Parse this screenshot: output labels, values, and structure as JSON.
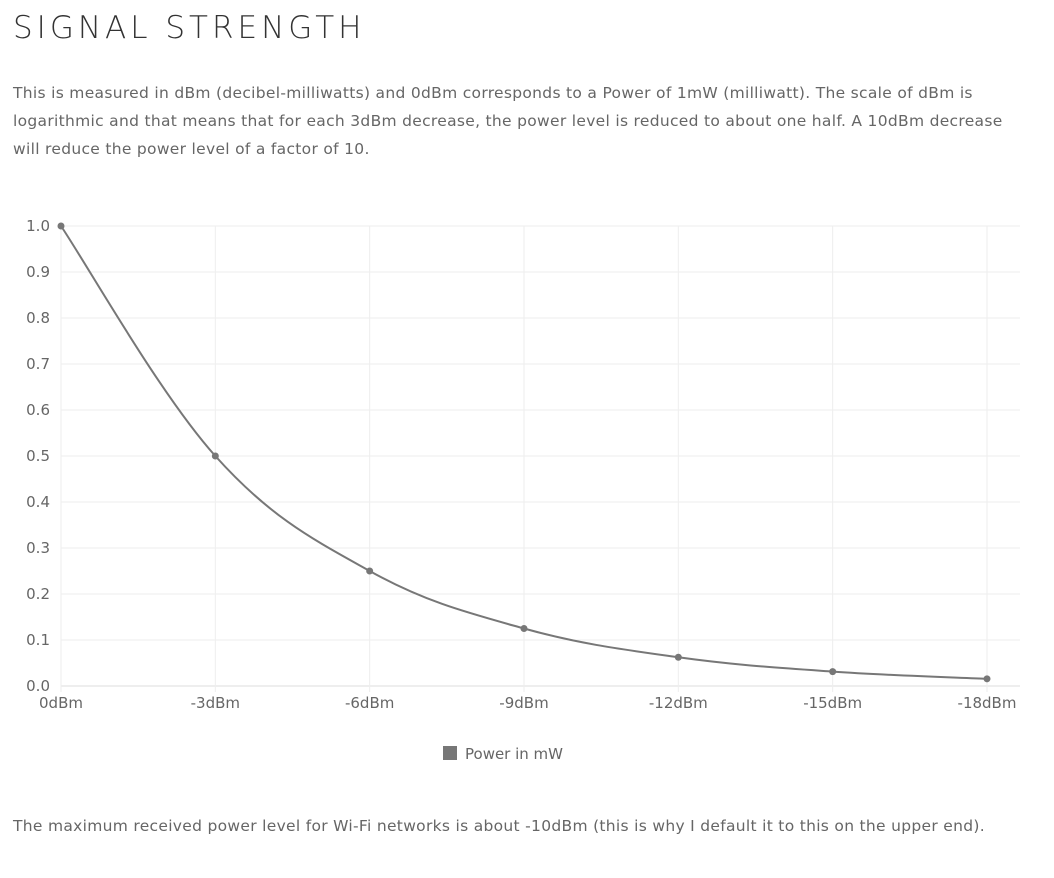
{
  "page": {
    "title": "SIGNAL STRENGTH",
    "intro": "This is measured in dBm (decibel-milliwatts) and 0dBm corresponds to a Power of 1mW (milliwatt). The scale of dBm is logarithmic and that means that for each 3dBm decrease, the power level is reduced to about one half. A 10dBm decrease will reduce the power level of a factor of 10.",
    "outro": "The maximum received power level for Wi-Fi networks is about -10dBm (this is why I default it to this on the upper end)."
  },
  "colors": {
    "series": "#777777",
    "grid": "#eeeeee",
    "text": "#666666"
  },
  "chart_data": {
    "type": "line",
    "categories": [
      "0dBm",
      "-3dBm",
      "-6dBm",
      "-9dBm",
      "-12dBm",
      "-15dBm",
      "-18dBm"
    ],
    "series": [
      {
        "name": "Power in mW",
        "values": [
          1.0,
          0.5,
          0.25,
          0.125,
          0.0625,
          0.03125,
          0.015625
        ]
      }
    ],
    "yticks": [
      "0.0",
      "0.1",
      "0.2",
      "0.3",
      "0.4",
      "0.5",
      "0.6",
      "0.7",
      "0.8",
      "0.9",
      "1.0"
    ],
    "ylim": [
      0,
      1
    ],
    "grid": true,
    "legend_position": "bottom-center",
    "curve": "smooth"
  }
}
